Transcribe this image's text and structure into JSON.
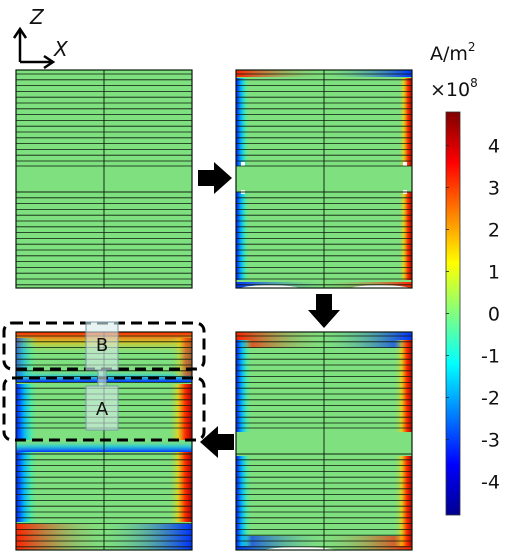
{
  "axes": {
    "z_label": "Z",
    "x_label": "X"
  },
  "colorbar": {
    "unit_line1": "A/m",
    "unit_exp": "2",
    "scale_line": "×10",
    "scale_exp": "8",
    "ticks": [
      "4",
      "3",
      "2",
      "1",
      "0",
      "-1",
      "-2",
      "-3",
      "-4"
    ],
    "tick_values": [
      4,
      3,
      2,
      1,
      0,
      -1,
      -2,
      -3,
      -4
    ],
    "range": [
      -4.8,
      4.8
    ],
    "colormap": "jet"
  },
  "panels": [
    {
      "name": "top-left",
      "state": "uniform"
    },
    {
      "name": "top-right",
      "state": "edge-currents"
    },
    {
      "name": "bottom-right",
      "state": "edge-currents-strong"
    },
    {
      "name": "bottom-left",
      "state": "loops"
    }
  ],
  "regions": [
    {
      "label": "B"
    },
    {
      "label": "A"
    }
  ],
  "colors": {
    "background": "#7fe07f",
    "line": "#0a1a0a",
    "arrow": "#000000"
  }
}
